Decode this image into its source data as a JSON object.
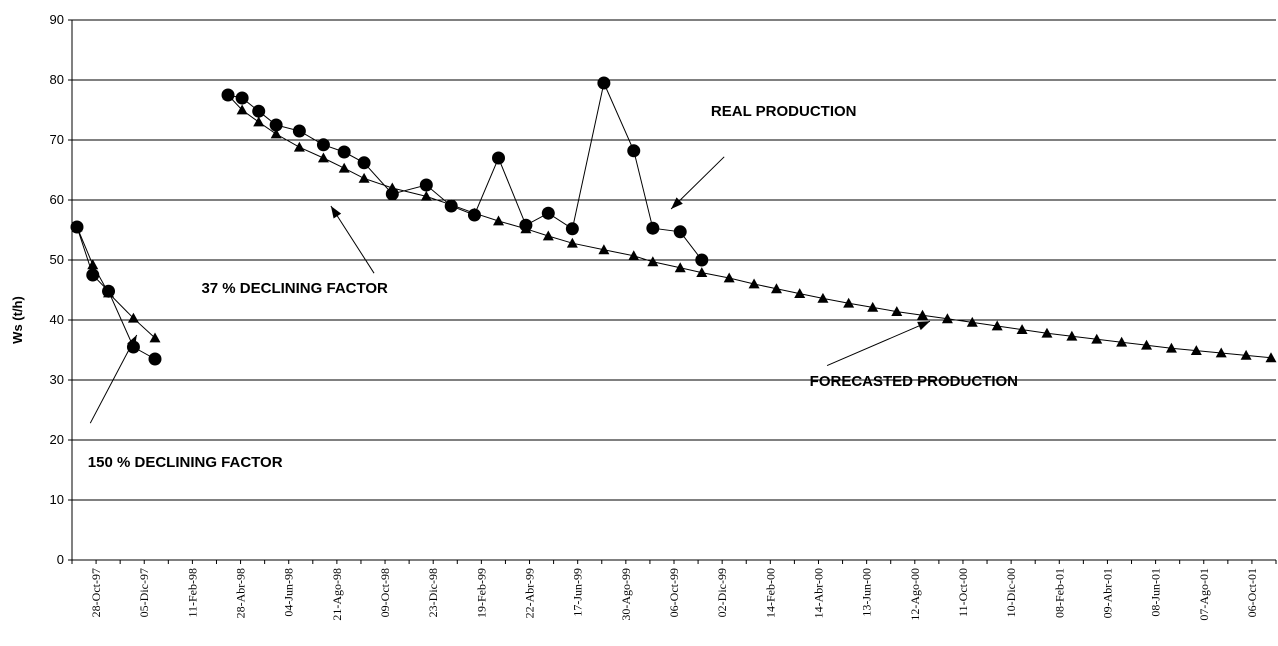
{
  "chart_data": {
    "type": "line",
    "title": "",
    "xlabel": "",
    "ylabel": "Ws (t/h)",
    "ylim": [
      0,
      90
    ],
    "yticks": [
      0,
      10,
      20,
      30,
      40,
      50,
      60,
      70,
      80,
      90
    ],
    "grid": "horizontal",
    "legend": "none",
    "x_tick_labels": [
      "28-Oct-97",
      "05-Dic-97",
      "11-Feb-98",
      "28-Abr-98",
      "04-Jun-98",
      "21-Ago-98",
      "09-Oct-98",
      "23-Dic-98",
      "19-Feb-99",
      "22-Abr-99",
      "17-Jun-99",
      "30-Ago-99",
      "06-Oct-99",
      "02-Dic-99",
      "14-Feb-00",
      "14-Abr-00",
      "13-Jun-00",
      "12-Ago-00",
      "11-Oct-00",
      "10-Dic-00",
      "08-Feb-01",
      "09-Abr-01",
      "08-Jun-01",
      "07-Ago-01",
      "06-Oct-01"
    ],
    "series": [
      {
        "marker": "circle",
        "color": "#000000",
        "segments": [
          [
            [
              "1997-10-28",
              55.5
            ],
            [
              "1997-11-16",
              47.5
            ],
            [
              "1997-12-05",
              44.8
            ],
            [
              "1998-01-04",
              35.5
            ],
            [
              "1998-01-30",
              33.5
            ]
          ],
          [
            [
              "1998-04-28",
              77.5
            ],
            [
              "1998-05-15",
              77.0
            ],
            [
              "1998-06-04",
              74.8
            ],
            [
              "1998-06-25",
              72.5
            ],
            [
              "1998-07-23",
              71.5
            ],
            [
              "1998-08-21",
              69.2
            ],
            [
              "1998-09-15",
              68.0
            ],
            [
              "1998-10-09",
              66.2
            ],
            [
              "1998-11-12",
              61.0
            ],
            [
              "1998-12-23",
              62.5
            ],
            [
              "1999-01-22",
              59.0
            ],
            [
              "1999-02-19",
              57.5
            ],
            [
              "1999-03-20",
              67.0
            ],
            [
              "1999-04-22",
              55.8
            ],
            [
              "1999-05-19",
              57.8
            ],
            [
              "1999-06-17",
              55.2
            ],
            [
              "1999-07-25",
              79.5
            ],
            [
              "1999-08-30",
              68.2
            ],
            [
              "1999-09-22",
              55.3
            ],
            [
              "1999-10-25",
              54.7
            ],
            [
              "1999-11-20",
              50.0
            ]
          ]
        ]
      },
      {
        "marker": "triangle",
        "color": "#000000",
        "segments": [
          [
            [
              "1997-10-28",
              55.5
            ],
            [
              "1997-11-16",
              49.2
            ],
            [
              "1997-12-05",
              44.5
            ],
            [
              "1998-01-04",
              40.3
            ],
            [
              "1998-01-30",
              37.0
            ]
          ],
          [
            [
              "1998-04-28",
              77.5
            ],
            [
              "1998-05-15",
              75.0
            ],
            [
              "1998-06-04",
              73.0
            ],
            [
              "1998-06-25",
              71.0
            ],
            [
              "1998-07-23",
              68.8
            ],
            [
              "1998-08-21",
              67.0
            ],
            [
              "1998-09-15",
              65.3
            ],
            [
              "1998-10-09",
              63.6
            ],
            [
              "1998-11-12",
              62.0
            ],
            [
              "1998-12-23",
              60.6
            ],
            [
              "1999-01-22",
              59.2
            ],
            [
              "1999-02-19",
              57.8
            ],
            [
              "1999-03-20",
              56.5
            ],
            [
              "1999-04-22",
              55.2
            ],
            [
              "1999-05-19",
              54.0
            ],
            [
              "1999-06-17",
              52.8
            ],
            [
              "1999-07-25",
              51.7
            ],
            [
              "1999-08-30",
              50.7
            ],
            [
              "1999-09-22",
              49.7
            ],
            [
              "1999-10-25",
              48.7
            ],
            [
              "1999-11-20",
              47.9
            ],
            [
              "1999-12-23",
              47.0
            ],
            [
              "2000-01-22",
              46.0
            ],
            [
              "2000-02-18",
              45.2
            ],
            [
              "2000-03-17",
              44.4
            ],
            [
              "2000-04-14",
              43.6
            ],
            [
              "2000-05-15",
              42.8
            ],
            [
              "2000-06-13",
              42.1
            ],
            [
              "2000-07-12",
              41.4
            ],
            [
              "2000-08-12",
              40.8
            ],
            [
              "2000-09-11",
              40.2
            ],
            [
              "2000-10-11",
              39.6
            ],
            [
              "2000-11-10",
              39.0
            ],
            [
              "2000-12-10",
              38.4
            ],
            [
              "2001-01-09",
              37.8
            ],
            [
              "2001-02-08",
              37.3
            ],
            [
              "2001-03-10",
              36.8
            ],
            [
              "2001-04-09",
              36.3
            ],
            [
              "2001-05-09",
              35.8
            ],
            [
              "2001-06-08",
              35.3
            ],
            [
              "2001-07-08",
              34.9
            ],
            [
              "2001-08-07",
              34.5
            ],
            [
              "2001-09-06",
              34.1
            ],
            [
              "2001-10-06",
              33.7
            ]
          ]
        ]
      }
    ],
    "annotations": [
      {
        "text": "REAL PRODUCTION",
        "label_at": [
          "1999-12-01",
          74
        ],
        "anchor": "start",
        "arrow_from": [
          "1999-12-17",
          67.2
        ],
        "arrow_to": [
          "1999-10-14",
          58.5
        ]
      },
      {
        "text": "37 % DECLINING FACTOR",
        "label_at": [
          "1998-03-27",
          44.5
        ],
        "anchor": "start",
        "arrow_from": [
          "1998-10-21",
          47.8
        ],
        "arrow_to": [
          "1998-08-30",
          59.0
        ]
      },
      {
        "text": "FORECASTED PRODUCTION",
        "label_at": [
          "2000-03-29",
          29.0
        ],
        "anchor": "start",
        "arrow_from": [
          "2000-04-19",
          32.4
        ],
        "arrow_to": [
          "2000-08-21",
          39.8
        ]
      },
      {
        "text": "150 % DECLINING FACTOR",
        "label_at": [
          "1997-11-10",
          15.5
        ],
        "anchor": "start",
        "arrow_from": [
          "1997-11-13",
          22.8
        ],
        "arrow_to": [
          "1998-01-08",
          37.5
        ]
      }
    ]
  }
}
